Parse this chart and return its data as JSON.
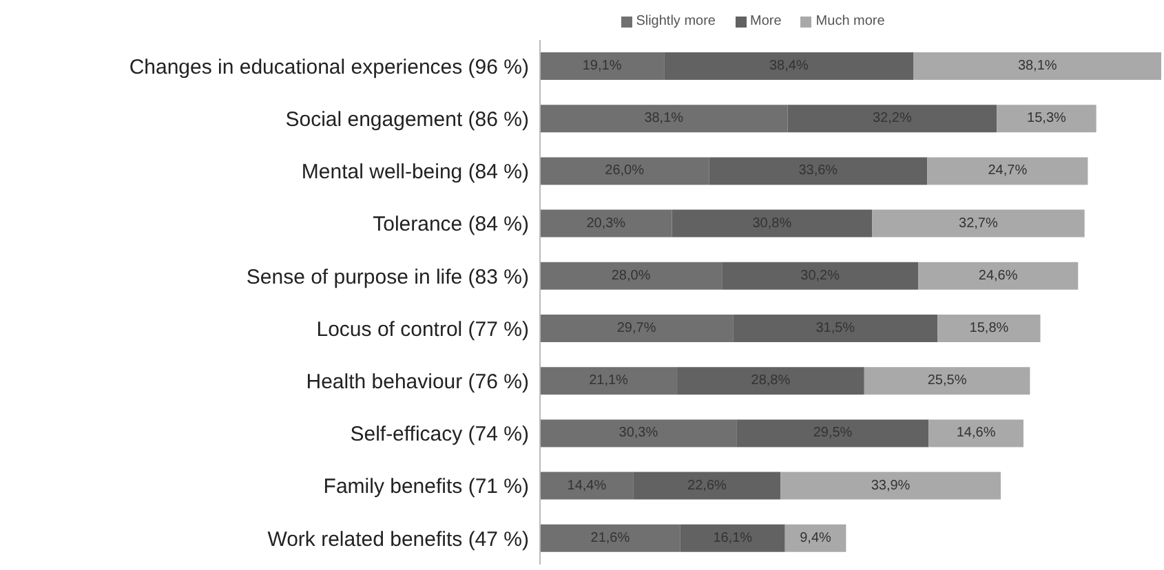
{
  "chart_data": {
    "type": "bar",
    "orientation": "horizontal",
    "stacked": true,
    "legend": "top",
    "categories": [
      "Changes in educational experiences (96 %)",
      "Social engagement (86 %)",
      "Mental well-being (84 %)",
      "Tolerance (84 %)",
      "Sense of purpose in life (83 %)",
      "Locus of control (77 %)",
      "Health behaviour (76 %)",
      "Self-efficacy (74 %)",
      "Family benefits (71 %)",
      "Work related benefits (47 %)"
    ],
    "series": [
      {
        "name": "Slightly more",
        "color": "#707070",
        "values": [
          19.1,
          38.1,
          26.0,
          20.3,
          28.0,
          29.7,
          21.1,
          30.3,
          14.4,
          21.6
        ],
        "value_labels": [
          "19,1%",
          "38,1%",
          "26,0%",
          "20,3%",
          "28,0%",
          "29,7%",
          "21,1%",
          "30,3%",
          "14,4%",
          "21,6%"
        ]
      },
      {
        "name": "More",
        "color": "#626262",
        "values": [
          38.4,
          32.2,
          33.6,
          30.8,
          30.2,
          31.5,
          28.8,
          29.5,
          22.6,
          16.1
        ],
        "value_labels": [
          "38,4%",
          "32,2%",
          "33,6%",
          "30,8%",
          "30,2%",
          "31,5%",
          "28,8%",
          "29,5%",
          "22,6%",
          "16,1%"
        ]
      },
      {
        "name": "Much more",
        "color": "#a9a9a9",
        "values": [
          38.1,
          15.3,
          24.7,
          32.7,
          24.6,
          15.8,
          25.5,
          14.6,
          33.9,
          9.4
        ],
        "value_labels": [
          "38,1%",
          "15,3%",
          "24,7%",
          "32,7%",
          "24,6%",
          "15,8%",
          "25,5%",
          "14,6%",
          "33,9%",
          "9,4%"
        ]
      }
    ]
  }
}
